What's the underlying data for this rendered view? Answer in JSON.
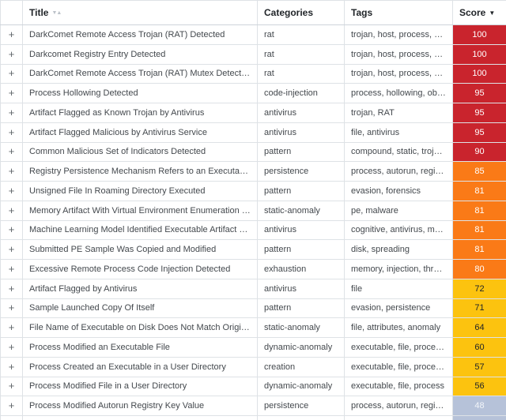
{
  "table": {
    "columns": {
      "expander": "",
      "title": "Title",
      "categories": "Categories",
      "tags": "Tags",
      "score": "Score"
    },
    "icons": {
      "expand": "+",
      "sort_unsorted": "▼▲",
      "sort_desc": "▼"
    },
    "score_colors": {
      "red": "#c9242d",
      "orange": "#fa7a17",
      "yellow": "#fcc30f",
      "blue": "#b6c2d9"
    },
    "rows": [
      {
        "title": "DarkComet Remote Access Trojan (RAT) Detected",
        "categories": "rat",
        "tags": "trojan, host, process, RA…",
        "score": "100",
        "level": "red"
      },
      {
        "title": "Darkcomet Registry Entry Detected",
        "categories": "rat",
        "tags": "trojan, host, process, RA…",
        "score": "100",
        "level": "red"
      },
      {
        "title": "DarkComet Remote Access Trojan (RAT) Mutex Detected",
        "categories": "rat",
        "tags": "trojan, host, process, RA…",
        "score": "100",
        "level": "red"
      },
      {
        "title": "Process Hollowing Detected",
        "categories": "code-injection",
        "tags": "process, hollowing, obfu…",
        "score": "95",
        "level": "red"
      },
      {
        "title": "Artifact Flagged as Known Trojan by Antivirus",
        "categories": "antivirus",
        "tags": "trojan, RAT",
        "score": "95",
        "level": "red"
      },
      {
        "title": "Artifact Flagged Malicious by Antivirus Service",
        "categories": "antivirus",
        "tags": "file, antivirus",
        "score": "95",
        "level": "red"
      },
      {
        "title": "Common Malicious Set of Indicators Detected",
        "categories": "pattern",
        "tags": "compound, static, trojan…",
        "score": "90",
        "level": "red"
      },
      {
        "title": "Registry Persistence Mechanism Refers to an Executable in…",
        "categories": "persistence",
        "tags": "process, autorun, regist…",
        "score": "85",
        "level": "orange"
      },
      {
        "title": "Unsigned File In Roaming Directory Executed",
        "categories": "pattern",
        "tags": "evasion, forensics",
        "score": "81",
        "level": "orange"
      },
      {
        "title": "Memory Artifact With Virtual Environment Enumeration De…",
        "categories": "static-anomaly",
        "tags": "pe, malware",
        "score": "81",
        "level": "orange"
      },
      {
        "title": "Machine Learning Model Identified Executable Artifact as L…",
        "categories": "antivirus",
        "tags": "cognitive, antivirus, ma…",
        "score": "81",
        "level": "orange"
      },
      {
        "title": "Submitted PE Sample Was Copied and Modified",
        "categories": "pattern",
        "tags": "disk, spreading",
        "score": "81",
        "level": "orange"
      },
      {
        "title": "Excessive Remote Process Code Injection Detected",
        "categories": "exhaustion",
        "tags": "memory, injection, thre…",
        "score": "80",
        "level": "orange"
      },
      {
        "title": "Artifact Flagged by Antivirus",
        "categories": "antivirus",
        "tags": "file",
        "score": "72",
        "level": "yellow"
      },
      {
        "title": "Sample Launched Copy Of Itself",
        "categories": "pattern",
        "tags": "evasion, persistence",
        "score": "71",
        "level": "yellow"
      },
      {
        "title": "File Name of Executable on Disk Does Not Match Original F…",
        "categories": "static-anomaly",
        "tags": "file, attributes, anomaly",
        "score": "64",
        "level": "yellow"
      },
      {
        "title": "Process Modified an Executable File",
        "categories": "dynamic-anomaly",
        "tags": "executable, file, proces…",
        "score": "60",
        "level": "yellow"
      },
      {
        "title": "Process Created an Executable in a User Directory",
        "categories": "creation",
        "tags": "executable, file, proces…",
        "score": "57",
        "level": "yellow"
      },
      {
        "title": "Process Modified File in a User Directory",
        "categories": "dynamic-anomaly",
        "tags": "executable, file, process",
        "score": "56",
        "level": "yellow"
      },
      {
        "title": "Process Modified Autorun Registry Key Value",
        "categories": "persistence",
        "tags": "process, autorun, regist…",
        "score": "48",
        "level": "blue"
      },
      {
        "title": "",
        "categories": "",
        "tags": "",
        "score": "",
        "level": "blue",
        "partial": true
      }
    ]
  }
}
